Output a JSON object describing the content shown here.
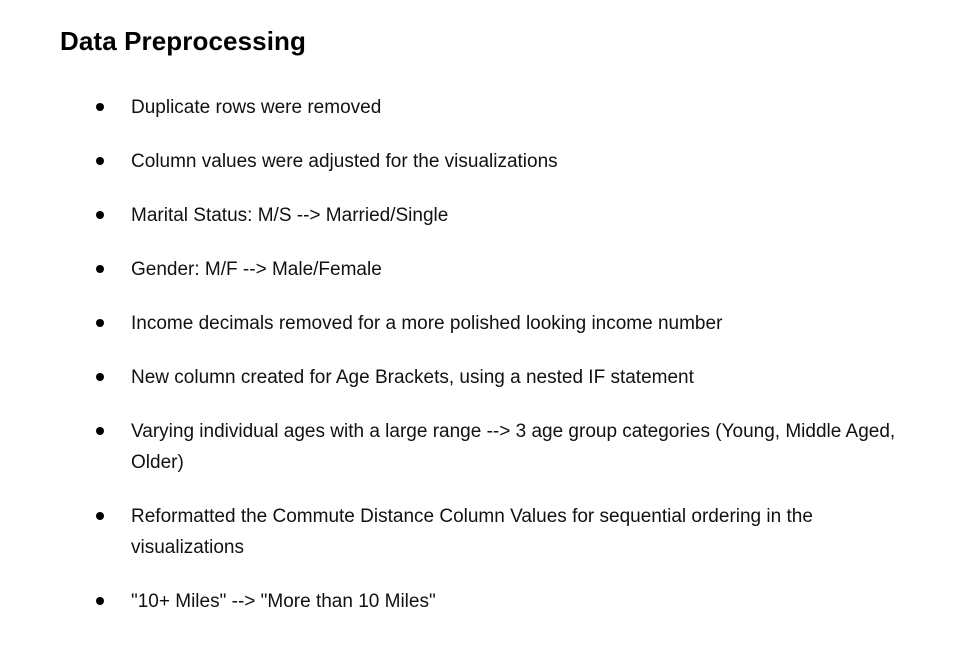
{
  "document": {
    "title": "Data Preprocessing",
    "bullets": [
      {
        "text": "Duplicate rows were removed"
      },
      {
        "text": "Column values were adjusted for the visualizations"
      },
      {
        "text": "Marital Status: M/S --> Married/Single"
      },
      {
        "text": "Gender: M/F --> Male/Female"
      },
      {
        "text": "Income decimals removed for a more polished looking income number"
      },
      {
        "text": "New column created for Age Brackets, using a nested IF statement"
      },
      {
        "text": "Varying individual ages with a large range --> 3 age group categories (Young, Middle Aged, Older)"
      },
      {
        "text": "Reformatted the Commute Distance Column Values for sequential ordering in the visualizations"
      },
      {
        "text": "\"10+ Miles\" --> \"More than 10 Miles\""
      }
    ]
  }
}
